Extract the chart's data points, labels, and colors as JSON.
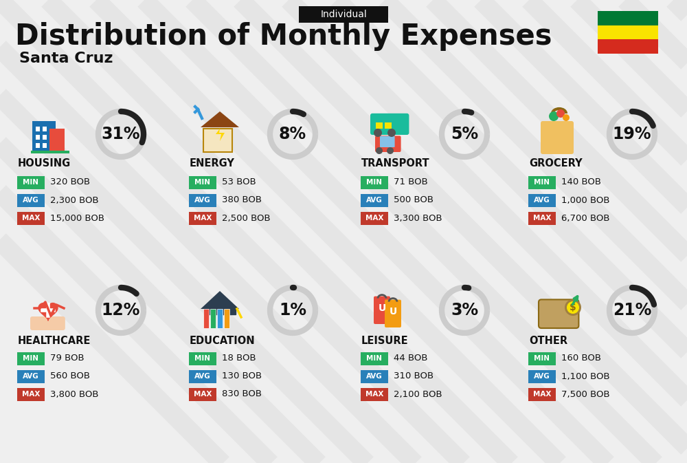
{
  "title": "Distribution of Monthly Expenses",
  "subtitle": "Individual",
  "city": "Santa Cruz",
  "bg_color": "#efefef",
  "categories": [
    {
      "name": "HOUSING",
      "pct": 31,
      "min_val": "320 BOB",
      "avg_val": "2,300 BOB",
      "max_val": "15,000 BOB",
      "row": 0,
      "col": 0,
      "icon_color": "#2980b9"
    },
    {
      "name": "ENERGY",
      "pct": 8,
      "min_val": "53 BOB",
      "avg_val": "380 BOB",
      "max_val": "2,500 BOB",
      "row": 0,
      "col": 1,
      "icon_color": "#f39c12"
    },
    {
      "name": "TRANSPORT",
      "pct": 5,
      "min_val": "71 BOB",
      "avg_val": "500 BOB",
      "max_val": "3,300 BOB",
      "row": 0,
      "col": 2,
      "icon_color": "#16a085"
    },
    {
      "name": "GROCERY",
      "pct": 19,
      "min_val": "140 BOB",
      "avg_val": "1,000 BOB",
      "max_val": "6,700 BOB",
      "row": 0,
      "col": 3,
      "icon_color": "#e67e22"
    },
    {
      "name": "HEALTHCARE",
      "pct": 12,
      "min_val": "79 BOB",
      "avg_val": "560 BOB",
      "max_val": "3,800 BOB",
      "row": 1,
      "col": 0,
      "icon_color": "#e74c3c"
    },
    {
      "name": "EDUCATION",
      "pct": 1,
      "min_val": "18 BOB",
      "avg_val": "130 BOB",
      "max_val": "830 BOB",
      "row": 1,
      "col": 1,
      "icon_color": "#8e44ad"
    },
    {
      "name": "LEISURE",
      "pct": 3,
      "min_val": "44 BOB",
      "avg_val": "310 BOB",
      "max_val": "2,100 BOB",
      "row": 1,
      "col": 2,
      "icon_color": "#e74c3c"
    },
    {
      "name": "OTHER",
      "pct": 21,
      "min_val": "160 BOB",
      "avg_val": "1,100 BOB",
      "max_val": "7,500 BOB",
      "row": 1,
      "col": 3,
      "icon_color": "#c0a060"
    }
  ],
  "min_color": "#27ae60",
  "avg_color": "#2980b9",
  "max_color": "#c0392b",
  "arc_dark": "#222222",
  "arc_light": "#cccccc",
  "bolivia_flag": [
    "#d52b1e",
    "#f9e300",
    "#007934"
  ],
  "stripe_color": "#d8d8d8",
  "title_fontsize": 30,
  "subtitle_fontsize": 10,
  "city_fontsize": 16,
  "cat_fontsize": 10.5,
  "pct_fontsize": 17,
  "val_fontsize": 9.5,
  "badge_fontsize": 7.5
}
